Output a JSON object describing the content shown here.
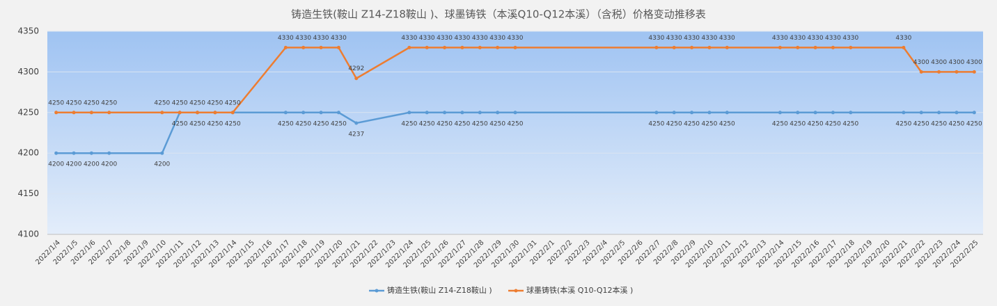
{
  "chart_data": {
    "type": "line",
    "title": "铸造生铁(鞍山 Z14-Z18鞍山 )、球墨铸铁（本溪Q10-Q12本溪）（含税）价格变动推移表",
    "xticks": [
      "2022/1/4",
      "2022/1/5",
      "2022/1/6",
      "2022/1/7",
      "2022/1/8",
      "2022/1/9",
      "2022/1/10",
      "2022/1/11",
      "2022/1/12",
      "2022/1/13",
      "2022/1/14",
      "2022/1/15",
      "2022/1/16",
      "2022/1/17",
      "2022/1/18",
      "2022/1/19",
      "2022/1/20",
      "2022/1/21",
      "2022/1/22",
      "2022/1/23",
      "2022/1/24",
      "2022/1/25",
      "2022/1/26",
      "2022/1/27",
      "2022/1/28",
      "2022/1/29",
      "2022/1/30",
      "2022/1/31",
      "2022/2/1",
      "2022/2/2",
      "2022/2/3",
      "2022/2/4",
      "2022/2/5",
      "2022/2/6",
      "2022/2/7",
      "2022/2/8",
      "2022/2/9",
      "2022/2/10",
      "2022/2/11",
      "2022/2/12",
      "2022/2/13",
      "2022/2/14",
      "2022/2/15",
      "2022/2/16",
      "2022/2/17",
      "2022/2/18",
      "2022/2/19",
      "2022/2/20",
      "2022/2/21",
      "2022/2/22",
      "2022/2/23",
      "2022/2/24",
      "2022/2/25"
    ],
    "x": [
      "2022/1/4",
      "2022/1/5",
      "2022/1/6",
      "2022/1/7",
      "2022/1/10",
      "2022/1/11",
      "2022/1/12",
      "2022/1/13",
      "2022/1/14",
      "2022/1/17",
      "2022/1/18",
      "2022/1/19",
      "2022/1/20",
      "2022/1/21",
      "2022/1/24",
      "2022/1/25",
      "2022/1/26",
      "2022/1/27",
      "2022/1/28",
      "2022/1/29",
      "2022/1/30",
      "2022/2/7",
      "2022/2/8",
      "2022/2/9",
      "2022/2/10",
      "2022/2/11",
      "2022/2/14",
      "2022/2/15",
      "2022/2/16",
      "2022/2/17",
      "2022/2/18",
      "2022/2/21",
      "2022/2/22",
      "2022/2/23",
      "2022/2/24",
      "2022/2/25"
    ],
    "series": [
      {
        "name": "铸造生铁(鞍山 Z14-Z18鞍山 )",
        "color": "#5b9bd5",
        "values": [
          4200,
          4200,
          4200,
          4200,
          4200,
          4250,
          4250,
          4250,
          4250,
          4250,
          4250,
          4250,
          4250,
          4237,
          4250,
          4250,
          4250,
          4250,
          4250,
          4250,
          4250,
          4250,
          4250,
          4250,
          4250,
          4250,
          4250,
          4250,
          4250,
          4250,
          4250,
          4250,
          4250,
          4250,
          4250,
          4250
        ]
      },
      {
        "name": "球墨铸铁(本溪 Q10-Q12本溪 )",
        "color": "#ed7d31",
        "values": [
          4250,
          4250,
          4250,
          4250,
          4250,
          4250,
          4250,
          4250,
          4250,
          4330,
          4330,
          4330,
          4330,
          4292,
          4330,
          4330,
          4330,
          4330,
          4330,
          4330,
          4330,
          4330,
          4330,
          4330,
          4330,
          4330,
          4330,
          4330,
          4330,
          4330,
          4330,
          4330,
          4300,
          4300,
          4300,
          4300
        ]
      }
    ],
    "ylim": [
      4100,
      4350
    ],
    "yticks": [
      4100,
      4150,
      4200,
      4250,
      4300,
      4350
    ],
    "grid": true,
    "legend": "bottom"
  }
}
